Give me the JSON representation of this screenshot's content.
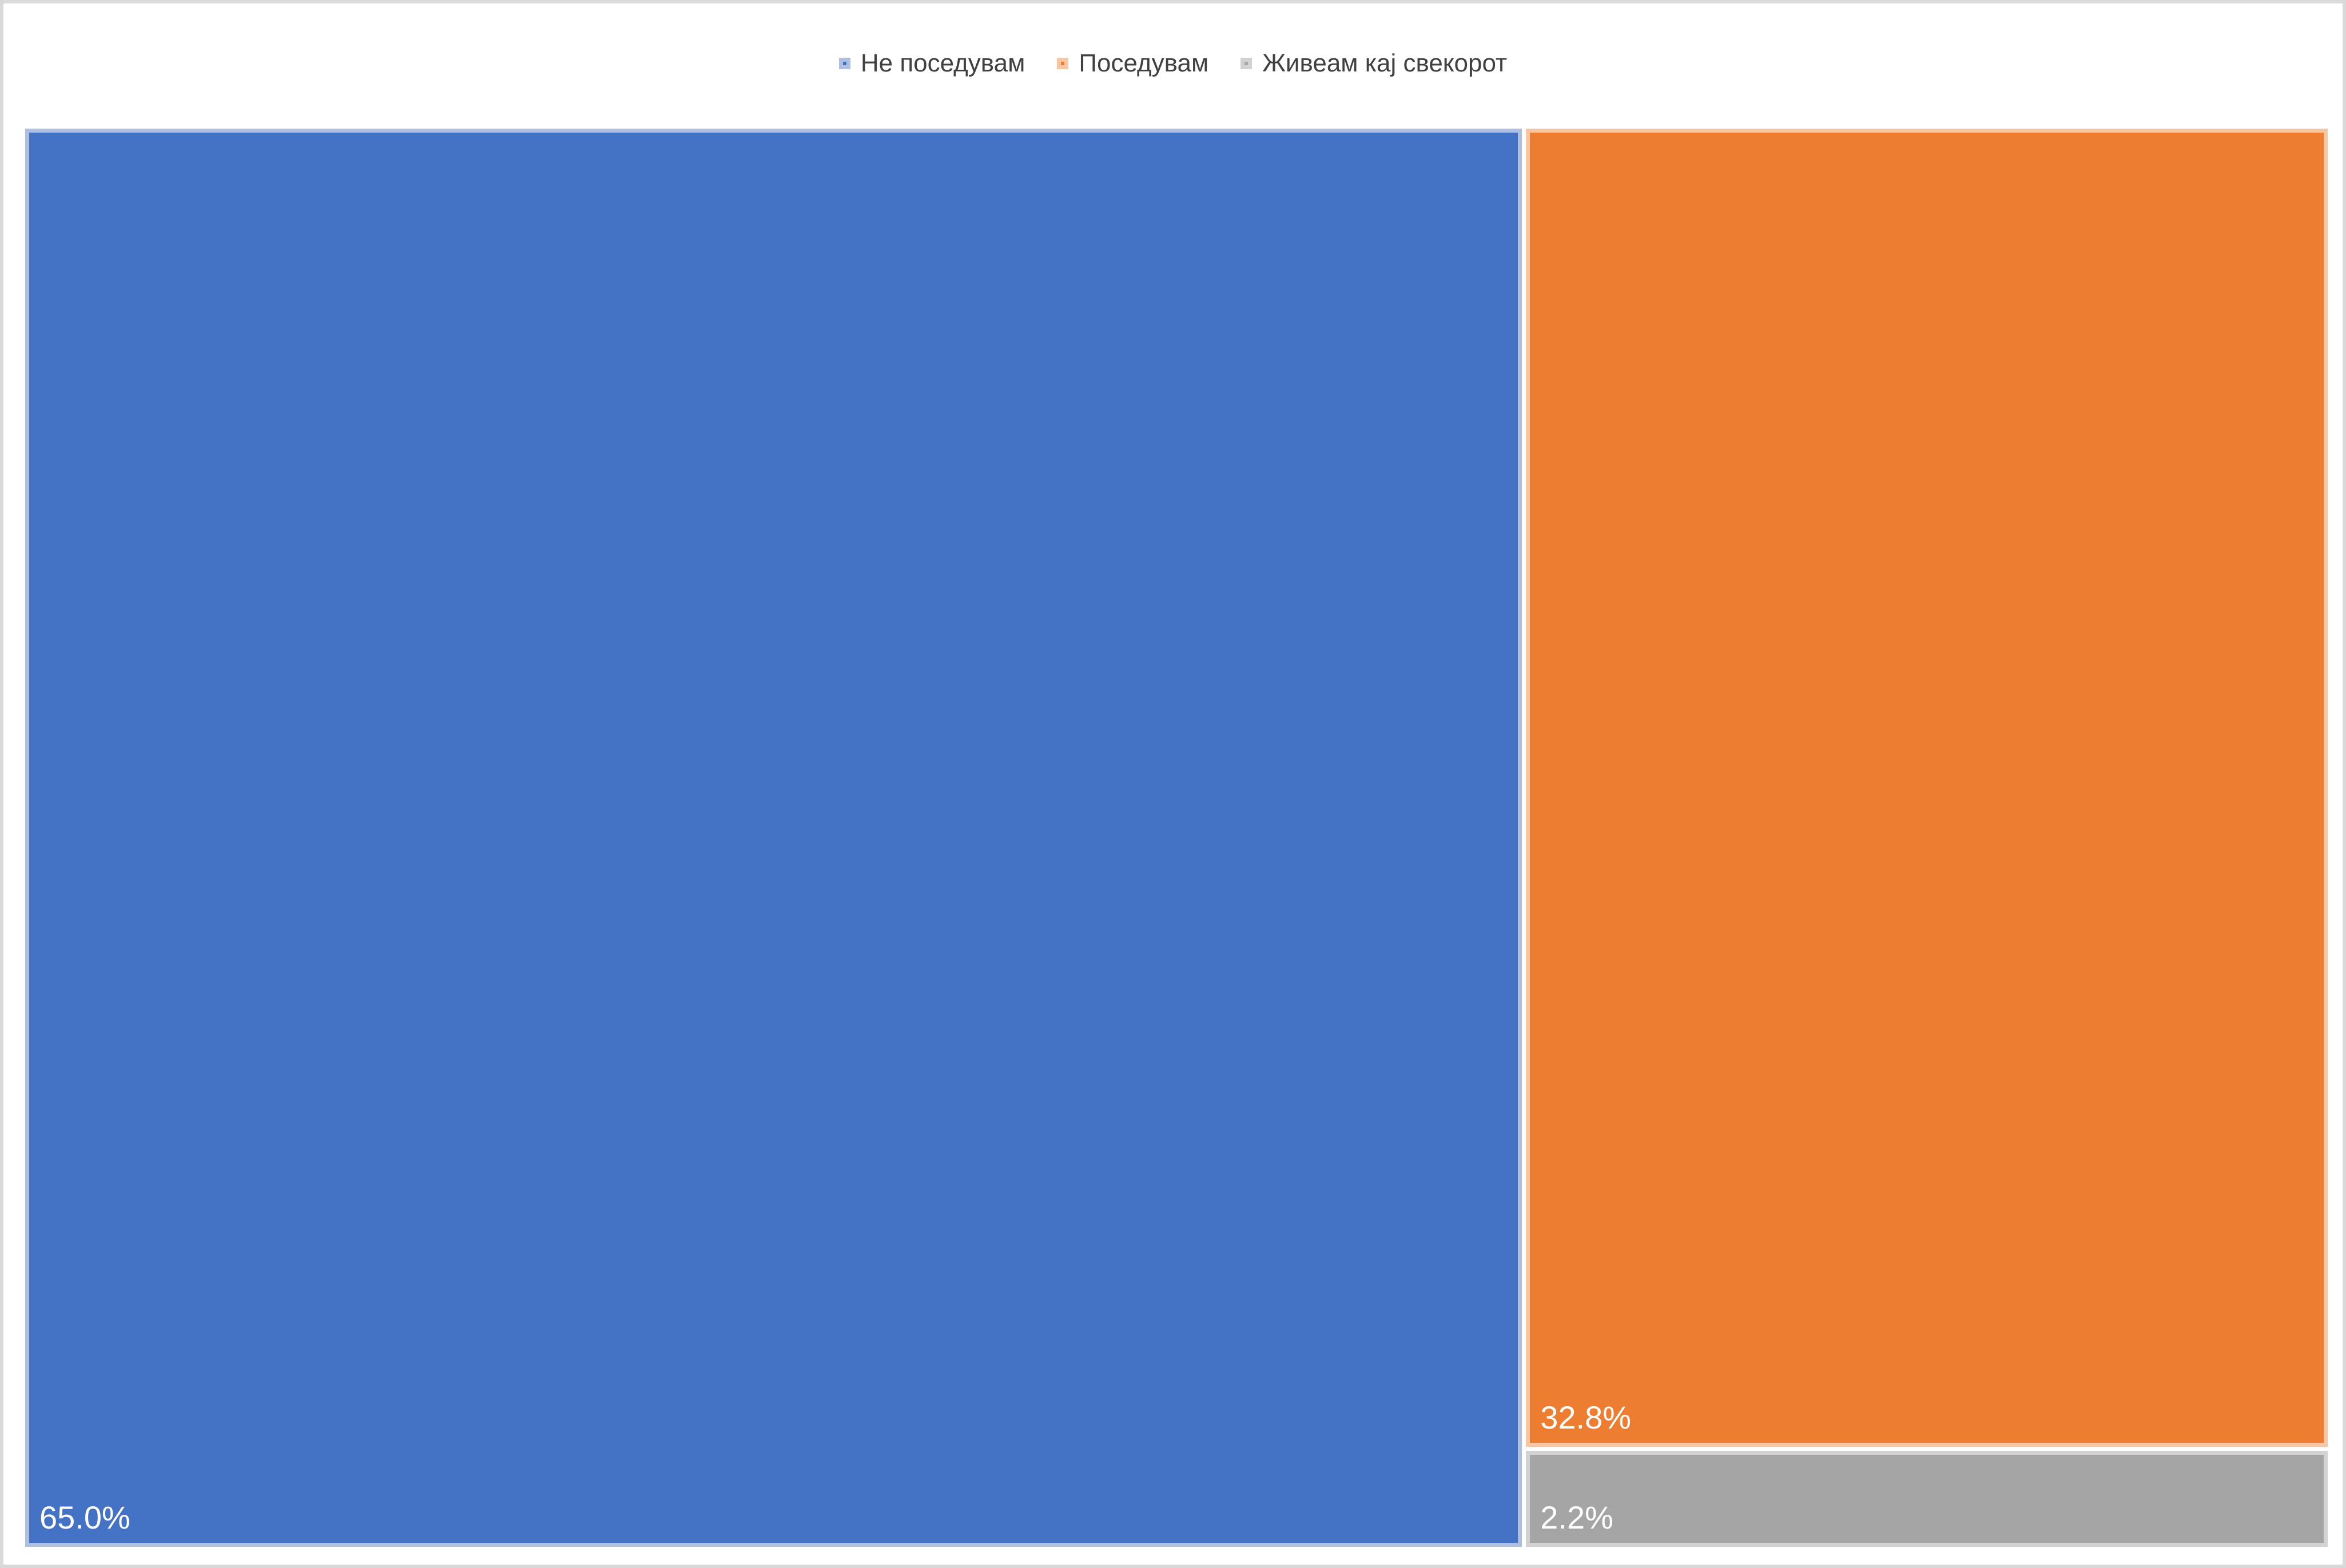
{
  "chart_data": {
    "type": "treemap",
    "title": "",
    "legend_position": "top",
    "series": [
      {
        "name": "Не поседувам",
        "value": 65.0,
        "label": "65.0%",
        "color": "#4472c4",
        "border_color": "#aebfe2"
      },
      {
        "name": "Поседувам",
        "value": 32.8,
        "label": "32.8%",
        "color": "#ed7d31",
        "border_color": "#f6c7a2"
      },
      {
        "name": "Живеам кај свекорот",
        "value": 2.2,
        "label": "2.2%",
        "color": "#a5a5a5",
        "border_color": "#d2d2d2"
      }
    ],
    "right_column_total": 35.0,
    "values_unit": "%"
  },
  "colors": {
    "background": "#ffffff",
    "frame_border": "#d9d9d9",
    "legend_text": "#404040",
    "tile_label_text": "#ffffff"
  }
}
